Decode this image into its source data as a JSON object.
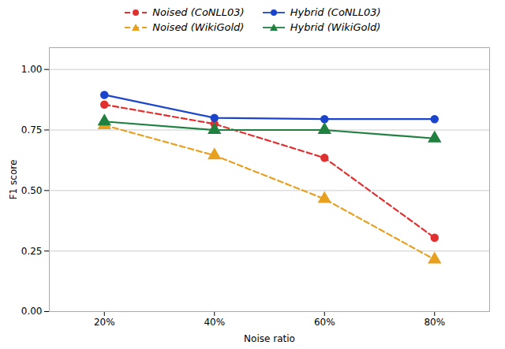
{
  "chart_data": {
    "type": "line",
    "xlabel": "Noise ratio",
    "ylabel": "F1 score",
    "x": [
      20,
      40,
      60,
      80
    ],
    "series": [
      {
        "name": "Noised (CoNLL03)",
        "color": "#e03030",
        "line_style": "dashed",
        "marker": "circle",
        "values": [
          0.855,
          0.775,
          0.635,
          0.305
        ]
      },
      {
        "name": "Hybrid (CoNLL03)",
        "color": "#1a44cc",
        "line_style": "solid",
        "marker": "circle",
        "values": [
          0.895,
          0.8,
          0.795,
          0.795
        ]
      },
      {
        "name": "Noised (WikiGold)",
        "color": "#e8a020",
        "line_style": "dashed",
        "marker": "triangle",
        "values": [
          0.77,
          0.645,
          0.465,
          0.215
        ]
      },
      {
        "name": "Hybrid (WikiGold)",
        "color": "#208040",
        "line_style": "solid",
        "marker": "triangle",
        "values": [
          0.785,
          0.75,
          0.75,
          0.715
        ]
      }
    ],
    "xlim": [
      10,
      90
    ],
    "xticks": [
      {
        "value": 20,
        "label": "20%"
      },
      {
        "value": 40,
        "label": "40%"
      },
      {
        "value": 60,
        "label": "60%"
      },
      {
        "value": 80,
        "label": "80%"
      }
    ],
    "ylim": [
      0.0,
      1.09
    ],
    "yticks": [
      {
        "value": 0,
        "label": "0.00"
      },
      {
        "value": 0.25,
        "label": "0.25"
      },
      {
        "value": 0.5,
        "label": "0.50"
      },
      {
        "value": 0.75,
        "label": "0.75"
      },
      {
        "value": 1,
        "label": "1.00"
      }
    ],
    "grid": "y",
    "legend": "top"
  }
}
